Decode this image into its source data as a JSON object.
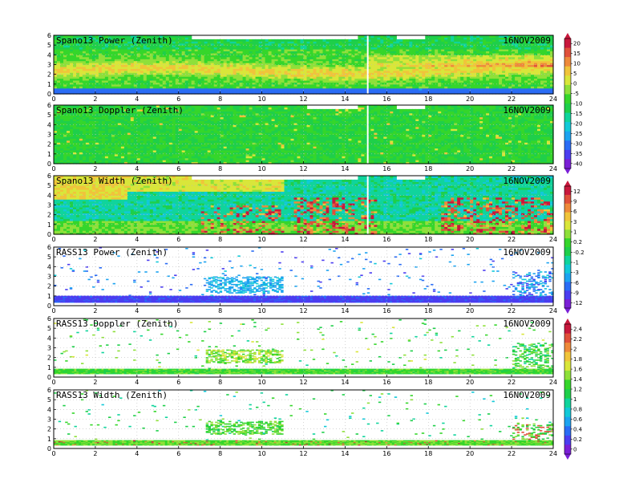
{
  "date": "16NOV2009",
  "x_ticks": [
    "0",
    "2",
    "4",
    "6",
    "8",
    "10",
    "12",
    "14",
    "16",
    "18",
    "20",
    "22",
    "24"
  ],
  "y_ticks": [
    "0",
    "1",
    "2",
    "3",
    "4",
    "5",
    "6"
  ],
  "chart_data": [
    {
      "type": "heatmap",
      "title": "Spano13 Power (Zenith)",
      "date": "16NOV2009",
      "xlim": [
        0,
        24
      ],
      "ylim": [
        0,
        6
      ],
      "field": "power"
    },
    {
      "type": "heatmap",
      "title": "Spano13 Doppler (Zenith)",
      "date": "16NOV2009",
      "xlim": [
        0,
        24
      ],
      "ylim": [
        0,
        6
      ],
      "field": "doppler"
    },
    {
      "type": "heatmap",
      "title": "Spano13 Width (Zenith)",
      "date": "16NOV2009",
      "xlim": [
        0,
        24
      ],
      "ylim": [
        0,
        6
      ],
      "field": "width"
    },
    {
      "type": "heatmap",
      "title": "RASS13 Power (Zenith)",
      "date": "16NOV2009",
      "xlim": [
        0,
        24
      ],
      "ylim": [
        0,
        6
      ],
      "field": "rpower"
    },
    {
      "type": "heatmap",
      "title": "RASS13 Doppler (Zenith)",
      "date": "16NOV2009",
      "xlim": [
        0,
        24
      ],
      "ylim": [
        0,
        6
      ],
      "field": "rdoppler"
    },
    {
      "type": "heatmap",
      "title": "RASS13 Width (Zenith)",
      "date": "16NOV2009",
      "xlim": [
        0,
        24
      ],
      "ylim": [
        0,
        6
      ],
      "field": "rwidth"
    }
  ],
  "colorbars": [
    {
      "labels": [
        "20",
        "15",
        "10",
        "5",
        "0",
        "-5",
        "-10",
        "-15",
        "-20",
        "-25",
        "-30",
        "-35",
        "-40"
      ]
    },
    {
      "labels": [
        "12",
        "9",
        "6",
        "3",
        "1",
        "0.2",
        "-0.2",
        "-1",
        "-3",
        "-6",
        "-9",
        "-12"
      ]
    },
    {
      "labels": [
        "2.4",
        "2.2",
        "2",
        "1.8",
        "1.6",
        "1.4",
        "1.2",
        "1",
        "0.8",
        "0.6",
        "0.4",
        "0.2",
        "0"
      ]
    }
  ],
  "palette": [
    "#7a1fd6",
    "#4b3df0",
    "#2a6cf5",
    "#1ca3f0",
    "#12c9d8",
    "#10d49c",
    "#1fcf4a",
    "#35d62b",
    "#8ee03a",
    "#d9e63a",
    "#f0c43a",
    "#ee8a3a",
    "#e0503a",
    "#c8183c"
  ]
}
